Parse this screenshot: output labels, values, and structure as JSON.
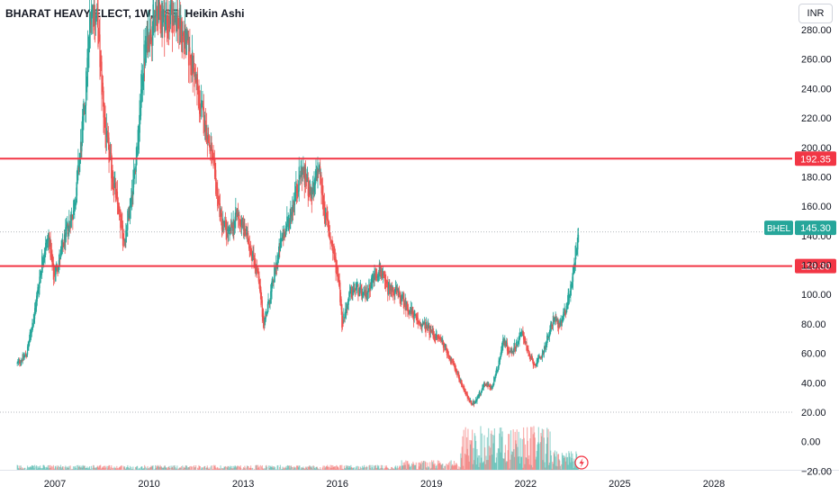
{
  "header": {
    "title": "BHARAT HEAVY ELECT, 1W, NSE, Heikin Ashi",
    "currency_label": "INR"
  },
  "colors": {
    "up": "#26a69a",
    "down": "#ef5350",
    "level_line": "#f23645",
    "price_tag_bg": "#26a69a",
    "axis_text": "#131722"
  },
  "chart_data": {
    "type": "candlestick",
    "title": "BHARAT HEAVY ELECT, 1W, NSE, Heikin Ashi",
    "symbol": "BHEL",
    "interval": "1W",
    "exchange": "NSE",
    "chart_style": "Heikin Ashi",
    "currency": "INR",
    "ylim": [
      -20,
      290
    ],
    "xlim": [
      2005.8,
      2029.4
    ],
    "y_ticks": [
      -20,
      0,
      20,
      40,
      60,
      80,
      100,
      120,
      140,
      160,
      180,
      200,
      220,
      240,
      260,
      280
    ],
    "y_tick_labels": [
      "−20.00",
      "0.00",
      "20.00",
      "40.00",
      "60.00",
      "80.00",
      "100.00",
      "120.00",
      "140.00",
      "160.00",
      "180.00",
      "200.00",
      "220.00",
      "240.00",
      "260.00",
      "280.00"
    ],
    "x_ticks": [
      2007,
      2010,
      2013,
      2016,
      2019,
      2022,
      2025,
      2028
    ],
    "x_tick_labels": [
      "2007",
      "2010",
      "2013",
      "2016",
      "2019",
      "2022",
      "2025",
      "2028"
    ],
    "last_price": 145.3,
    "last_price_label": "145.30",
    "horizontal_levels": [
      {
        "value": 192.35,
        "label": "192.35"
      },
      {
        "value": 119.3,
        "label": "119.30"
      }
    ],
    "reference_lines": [
      142.5,
      20
    ],
    "price_path": [
      [
        2005.8,
        53
      ],
      [
        2006.1,
        60
      ],
      [
        2006.35,
        88
      ],
      [
        2006.6,
        125
      ],
      [
        2006.8,
        140
      ],
      [
        2006.95,
        112
      ],
      [
        2007.2,
        128
      ],
      [
        2007.4,
        145
      ],
      [
        2007.6,
        158
      ],
      [
        2007.85,
        205
      ],
      [
        2008.0,
        245
      ],
      [
        2008.15,
        298
      ],
      [
        2008.35,
        285
      ],
      [
        2008.6,
        210
      ],
      [
        2008.8,
        185
      ],
      [
        2009.0,
        160
      ],
      [
        2009.2,
        135
      ],
      [
        2009.45,
        170
      ],
      [
        2009.65,
        205
      ],
      [
        2009.8,
        255
      ],
      [
        2010.0,
        280
      ],
      [
        2010.3,
        292
      ],
      [
        2010.6,
        285
      ],
      [
        2010.85,
        290
      ],
      [
        2011.1,
        275
      ],
      [
        2011.4,
        255
      ],
      [
        2011.6,
        230
      ],
      [
        2011.85,
        210
      ],
      [
        2012.05,
        185
      ],
      [
        2012.3,
        150
      ],
      [
        2012.55,
        140
      ],
      [
        2012.8,
        155
      ],
      [
        2013.0,
        145
      ],
      [
        2013.2,
        135
      ],
      [
        2013.45,
        115
      ],
      [
        2013.65,
        80
      ],
      [
        2013.85,
        98
      ],
      [
        2014.05,
        120
      ],
      [
        2014.25,
        140
      ],
      [
        2014.45,
        150
      ],
      [
        2014.65,
        168
      ],
      [
        2014.85,
        185
      ],
      [
        2015.05,
        175
      ],
      [
        2015.2,
        165
      ],
      [
        2015.4,
        188
      ],
      [
        2015.6,
        155
      ],
      [
        2015.8,
        135
      ],
      [
        2016.05,
        110
      ],
      [
        2016.15,
        80
      ],
      [
        2016.4,
        100
      ],
      [
        2016.6,
        105
      ],
      [
        2016.85,
        98
      ],
      [
        2017.1,
        110
      ],
      [
        2017.35,
        118
      ],
      [
        2017.55,
        105
      ],
      [
        2017.85,
        102
      ],
      [
        2018.1,
        95
      ],
      [
        2018.35,
        88
      ],
      [
        2018.6,
        80
      ],
      [
        2018.85,
        78
      ],
      [
        2019.1,
        72
      ],
      [
        2019.35,
        68
      ],
      [
        2019.6,
        56
      ],
      [
        2019.85,
        45
      ],
      [
        2020.1,
        32
      ],
      [
        2020.3,
        24
      ],
      [
        2020.5,
        32
      ],
      [
        2020.7,
        40
      ],
      [
        2020.9,
        36
      ],
      [
        2021.1,
        50
      ],
      [
        2021.3,
        70
      ],
      [
        2021.5,
        60
      ],
      [
        2021.7,
        66
      ],
      [
        2021.9,
        75
      ],
      [
        2022.1,
        58
      ],
      [
        2022.3,
        52
      ],
      [
        2022.5,
        58
      ],
      [
        2022.7,
        70
      ],
      [
        2022.9,
        85
      ],
      [
        2023.1,
        78
      ],
      [
        2023.3,
        92
      ],
      [
        2023.45,
        106
      ],
      [
        2023.6,
        130
      ],
      [
        2023.7,
        145.3
      ]
    ],
    "volume_scale_max": 60
  }
}
